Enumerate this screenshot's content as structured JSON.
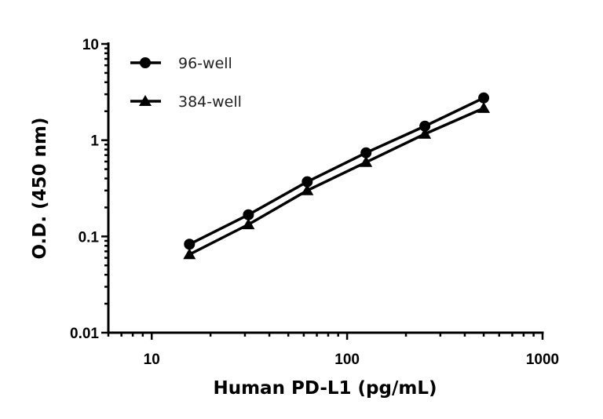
{
  "chart_data": {
    "type": "line",
    "xlabel": "Human PD-L1 (pg/mL)",
    "ylabel": "O.D. (450 nm)",
    "x_scale": "log",
    "y_scale": "log",
    "xlim": [
      6,
      1000
    ],
    "ylim": [
      0.01,
      10
    ],
    "x_ticks": [
      {
        "value": 10,
        "label": "10"
      },
      {
        "value": 100,
        "label": "100"
      },
      {
        "value": 1000,
        "label": "1000"
      }
    ],
    "y_ticks": [
      {
        "value": 10,
        "label": "10"
      },
      {
        "value": 1,
        "label": "1"
      },
      {
        "value": 0.1,
        "label": "0.1"
      },
      {
        "value": 0.01,
        "label": "0.01"
      }
    ],
    "grid": false,
    "legend_position": "top-left",
    "x": [
      15.6,
      31.25,
      62.5,
      125,
      250,
      500
    ],
    "series": [
      {
        "name": "96-well",
        "marker": "circle",
        "color": "#000000",
        "values": [
          0.083,
          0.168,
          0.37,
          0.74,
          1.4,
          2.75
        ]
      },
      {
        "name": "384-well",
        "marker": "triangle",
        "color": "#000000",
        "values": [
          0.065,
          0.133,
          0.3,
          0.59,
          1.16,
          2.15
        ]
      }
    ]
  }
}
